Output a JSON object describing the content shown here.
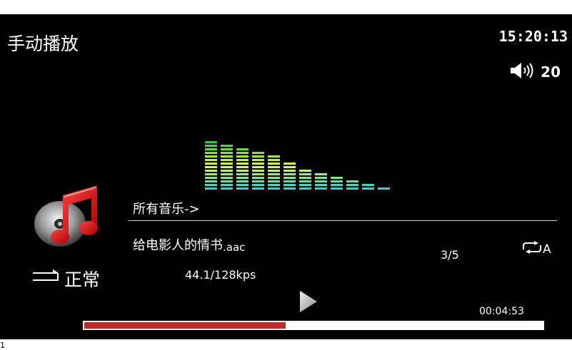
{
  "header": {
    "mode_title": "手动播放",
    "clock": "15:20:13",
    "volume_icon": "speaker-icon",
    "volume_level": "20"
  },
  "spectrum": {
    "icon": "spectrum-analyzer",
    "levels": [
      14,
      13,
      12,
      11,
      10,
      8,
      6,
      5,
      4,
      3,
      2,
      1
    ],
    "max_level": 14,
    "colors": [
      "#18d8e0",
      "#e8ff28",
      "#28d03c"
    ]
  },
  "player": {
    "album_icon": "music-note-icon",
    "playlist_path": "所有音乐->",
    "track_name": "给电影人的情书",
    "track_ext": ".aac",
    "track_index": "3/5",
    "repeat_icon": "repeat-icon",
    "repeat_label": "A",
    "eq_icon": "sequential-icon",
    "eq_mode": "正常",
    "bitrate": "44.1/128kps",
    "play_icon": "play-icon",
    "elapsed": "00:04:53",
    "progress": 0.44,
    "progress_color": "#c02a2a"
  },
  "corner_mark": "1"
}
